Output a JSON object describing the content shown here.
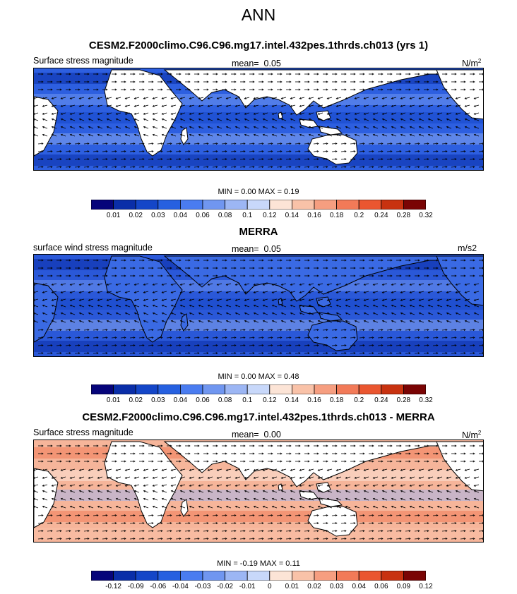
{
  "title": "ANN",
  "colors": {
    "cbar_abs": [
      "#06047a",
      "#0a2ea8",
      "#1446c8",
      "#2660e0",
      "#4a7cf0",
      "#7096f0",
      "#9cb6f4",
      "#c8d8fa",
      "#fce4d6",
      "#f9c2a8",
      "#f69e80",
      "#f27a58",
      "#ea5630",
      "#c83210",
      "#7a0404"
    ],
    "cbar_diff": [
      "#06047a",
      "#0a2ea8",
      "#1446c8",
      "#2660e0",
      "#4a7cf0",
      "#7096f0",
      "#9cb6f4",
      "#c8d8fa",
      "#fce4d6",
      "#f9c2a8",
      "#f69e80",
      "#f27a58",
      "#ea5630",
      "#c83210",
      "#7a0404"
    ],
    "land": "#ffffff",
    "coast": "#000000"
  },
  "panels": [
    {
      "title": "CESM2.F2000climo.C96.C96.mg17.intel.432pes.1thrds.ch013 (yrs 1)",
      "left_label": "Surface stress magnitude",
      "mean_label": "mean=",
      "mean_value": "0.05",
      "units_base": "N/m",
      "units_sup": "2",
      "minmax": "MIN =   0.00 MAX =   0.19",
      "colorbar_labels": [
        "0.01",
        "0.02",
        "0.03",
        "0.04",
        "0.06",
        "0.08",
        "0.1",
        "0.12",
        "0.14",
        "0.16",
        "0.18",
        "0.2",
        "0.24",
        "0.28",
        "0.32"
      ]
    },
    {
      "title": "MERRA",
      "left_label": "surface wind stress magnitude",
      "mean_label": "mean=",
      "mean_value": "0.05",
      "units_base": "m/s2",
      "units_sup": "",
      "minmax": "MIN =   0.00 MAX =   0.48",
      "colorbar_labels": [
        "0.01",
        "0.02",
        "0.03",
        "0.04",
        "0.06",
        "0.08",
        "0.1",
        "0.12",
        "0.14",
        "0.16",
        "0.18",
        "0.2",
        "0.24",
        "0.28",
        "0.32"
      ]
    },
    {
      "title": "CESM2.F2000climo.C96.C96.mg17.intel.432pes.1thrds.ch013 - MERRA",
      "left_label": "Surface stress magnitude",
      "mean_label": "mean=",
      "mean_value": "0.00",
      "units_base": "N/m",
      "units_sup": "2",
      "minmax": "MIN =  -0.19 MAX =   0.11",
      "colorbar_labels": [
        "-0.12",
        "-0.09",
        "-0.06",
        "-0.04",
        "-0.03",
        "-0.02",
        "-0.01",
        "0",
        "0.01",
        "0.02",
        "0.03",
        "0.04",
        "0.06",
        "0.09",
        "0.12"
      ]
    }
  ],
  "chart_data": [
    {
      "type": "heatmap",
      "title": "CESM2.F2000climo.C96.C96.mg17.intel.432pes.1thrds.ch013 (yrs 1)",
      "field": "Surface stress magnitude",
      "units": "N/m2",
      "mean": 0.05,
      "min": 0.0,
      "max": 0.19,
      "levels": [
        0.01,
        0.02,
        0.03,
        0.04,
        0.06,
        0.08,
        0.1,
        0.12,
        0.14,
        0.16,
        0.18,
        0.2,
        0.24,
        0.28,
        0.32
      ],
      "vectors": true
    },
    {
      "type": "heatmap",
      "title": "MERRA",
      "field": "surface wind stress magnitude",
      "units": "m/s2",
      "mean": 0.05,
      "min": 0.0,
      "max": 0.48,
      "levels": [
        0.01,
        0.02,
        0.03,
        0.04,
        0.06,
        0.08,
        0.1,
        0.12,
        0.14,
        0.16,
        0.18,
        0.2,
        0.24,
        0.28,
        0.32
      ],
      "vectors": true
    },
    {
      "type": "heatmap",
      "title": "CESM2.F2000climo.C96.C96.mg17.intel.432pes.1thrds.ch013 - MERRA",
      "field": "Surface stress magnitude",
      "units": "N/m2",
      "mean": 0.0,
      "min": -0.19,
      "max": 0.11,
      "levels": [
        -0.12,
        -0.09,
        -0.06,
        -0.04,
        -0.03,
        -0.02,
        -0.01,
        0,
        0.01,
        0.02,
        0.03,
        0.04,
        0.06,
        0.09,
        0.12
      ],
      "vectors": true
    }
  ]
}
